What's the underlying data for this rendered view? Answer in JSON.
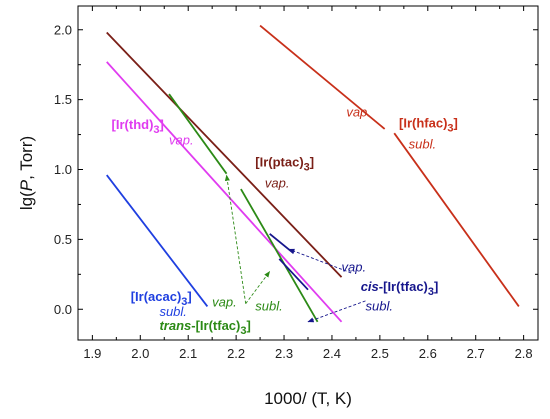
{
  "chart_data": {
    "type": "line",
    "xlabel": "1000/ (T, K)",
    "ylabel_prefix": "lg(",
    "ylabel_italic": "P",
    "ylabel_suffix": ", Torr)",
    "xlim": [
      1.87,
      2.83
    ],
    "ylim": [
      -0.22,
      2.17
    ],
    "xticks": [
      "1.9",
      "2.0",
      "2.1",
      "2.2",
      "2.3",
      "2.4",
      "2.5",
      "2.6",
      "2.7",
      "2.8"
    ],
    "yticks": [
      "0.0",
      "0.5",
      "1.0",
      "1.5",
      "2.0"
    ],
    "grid": false,
    "legend": "none",
    "series": [
      {
        "color": "#7a1f17",
        "x": [
          1.93,
          2.42
        ],
        "y": [
          1.98,
          0.23
        ]
      },
      {
        "color": "#e03cf0",
        "x": [
          1.93,
          2.42
        ],
        "y": [
          1.77,
          -0.09
        ]
      },
      {
        "color": "#1f3fe0",
        "x": [
          1.93,
          2.14
        ],
        "y": [
          0.96,
          0.02
        ]
      },
      {
        "color": "#2c8a16",
        "x": [
          2.06,
          2.18
        ],
        "y": [
          1.54,
          0.97
        ]
      },
      {
        "color": "#2c8a16",
        "x": [
          2.21,
          2.37
        ],
        "y": [
          0.86,
          -0.09
        ]
      },
      {
        "color": "#c8301a",
        "x": [
          2.25,
          2.51
        ],
        "y": [
          2.03,
          1.29
        ]
      },
      {
        "color": "#c8301a",
        "x": [
          2.53,
          2.79
        ],
        "y": [
          1.26,
          0.02
        ]
      },
      {
        "color": "#16168c",
        "x": [
          2.27,
          2.32
        ],
        "y": [
          0.54,
          0.4
        ]
      },
      {
        "color": "#16168c",
        "x": [
          2.29,
          2.35
        ],
        "y": [
          0.36,
          0.14
        ]
      }
    ],
    "annotations": [
      {
        "id": "thd",
        "parts": [
          {
            "t": "[Ir(thd)",
            "bold": true
          },
          {
            "t": "3",
            "bold": true,
            "sub": true
          },
          {
            "t": "]",
            "bold": true
          }
        ],
        "color": "#e03cf0",
        "x": 1.94,
        "y": 1.29
      },
      {
        "id": "thd-vap",
        "parts": [
          {
            "t": "vap.",
            "italic": true
          }
        ],
        "color": "#e03cf0",
        "x": 2.06,
        "y": 1.18
      },
      {
        "id": "ptac",
        "parts": [
          {
            "t": "[Ir(ptac)",
            "bold": true
          },
          {
            "t": "3",
            "bold": true,
            "sub": true
          },
          {
            "t": "]",
            "bold": true
          }
        ],
        "color": "#7a1f17",
        "x": 2.24,
        "y": 1.02
      },
      {
        "id": "ptac-vap",
        "parts": [
          {
            "t": "vap.",
            "italic": true
          }
        ],
        "color": "#7a1f17",
        "x": 2.26,
        "y": 0.87
      },
      {
        "id": "hfac",
        "parts": [
          {
            "t": "[Ir(hfac)",
            "bold": true
          },
          {
            "t": "3",
            "bold": true,
            "sub": true
          },
          {
            "t": "]",
            "bold": true
          }
        ],
        "color": "#c8301a",
        "x": 2.54,
        "y": 1.3
      },
      {
        "id": "hfac-vap",
        "parts": [
          {
            "t": "vap.",
            "italic": true
          }
        ],
        "color": "#c8301a",
        "x": 2.43,
        "y": 1.38
      },
      {
        "id": "hfac-subl",
        "parts": [
          {
            "t": "subl.",
            "italic": true
          }
        ],
        "color": "#c8301a",
        "x": 2.56,
        "y": 1.15
      },
      {
        "id": "acac",
        "parts": [
          {
            "t": "[Ir(acac)",
            "bold": true
          },
          {
            "t": "3",
            "bold": true,
            "sub": true
          },
          {
            "t": "]",
            "bold": true
          }
        ],
        "color": "#1f3fe0",
        "x": 1.98,
        "y": 0.06
      },
      {
        "id": "acac-subl",
        "parts": [
          {
            "t": "subl.",
            "italic": true
          }
        ],
        "color": "#1f3fe0",
        "x": 2.04,
        "y": -0.05
      },
      {
        "id": "cis",
        "parts": [
          {
            "t": "cis",
            "bold": true,
            "italic": true
          },
          {
            "t": "-[Ir(tfac)",
            "bold": true
          },
          {
            "t": "3",
            "bold": true,
            "sub": true
          },
          {
            "t": "]",
            "bold": true
          }
        ],
        "color": "#16168c",
        "x": 2.46,
        "y": 0.13
      },
      {
        "id": "cis-vap",
        "parts": [
          {
            "t": "vap.",
            "italic": true
          }
        ],
        "color": "#16168c",
        "x": 2.42,
        "y": 0.27
      },
      {
        "id": "cis-subl",
        "parts": [
          {
            "t": "subl.",
            "italic": true
          }
        ],
        "color": "#16168c",
        "x": 2.47,
        "y": -0.01
      },
      {
        "id": "trans",
        "parts": [
          {
            "t": "trans",
            "bold": true,
            "italic": true
          },
          {
            "t": "-[Ir(tfac)",
            "bold": true
          },
          {
            "t": "3",
            "bold": true,
            "sub": true
          },
          {
            "t": "]",
            "bold": true
          }
        ],
        "color": "#2c8a16",
        "x": 2.04,
        "y": -0.15
      },
      {
        "id": "trans-vap",
        "parts": [
          {
            "t": "vap.",
            "italic": true
          }
        ],
        "color": "#2c8a16",
        "x": 2.15,
        "y": 0.02
      },
      {
        "id": "trans-subl",
        "parts": [
          {
            "t": "subl.",
            "italic": true
          }
        ],
        "color": "#2c8a16",
        "x": 2.24,
        "y": -0.01
      }
    ],
    "pointers": [
      {
        "color": "#2c8a16",
        "from": [
          2.22,
          0.04
        ],
        "to": [
          2.18,
          0.96
        ]
      },
      {
        "color": "#2c8a16",
        "from": [
          2.22,
          0.04
        ],
        "to": [
          2.27,
          0.27
        ]
      },
      {
        "color": "#16168c",
        "from": [
          2.44,
          0.26
        ],
        "to": [
          2.31,
          0.43
        ]
      },
      {
        "color": "#16168c",
        "from": [
          2.47,
          0.06
        ],
        "to": [
          2.35,
          -0.09
        ]
      }
    ]
  }
}
